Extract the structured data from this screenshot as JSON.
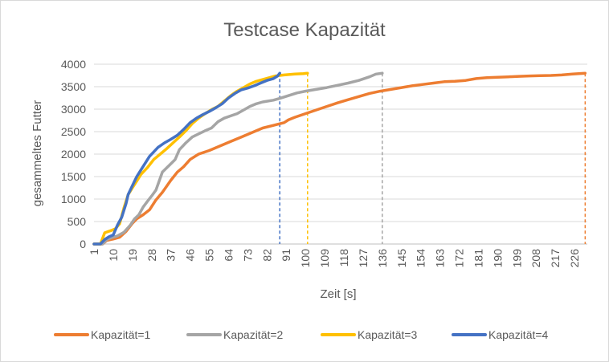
{
  "chart_data": {
    "type": "line",
    "title": "Testcase Kapazität",
    "xlabel": "Zeit [s]",
    "ylabel": "gesammeltes Futter",
    "ylim": [
      0,
      4000
    ],
    "xlim": [
      1,
      232
    ],
    "yticks": [
      "0",
      "500",
      "1000",
      "1500",
      "2000",
      "2500",
      "3000",
      "3500",
      "4000"
    ],
    "xticks": [
      "1",
      "10",
      "19",
      "28",
      "37",
      "46",
      "55",
      "64",
      "73",
      "82",
      "91",
      "100",
      "109",
      "118",
      "127",
      "136",
      "145",
      "154",
      "163",
      "172",
      "181",
      "190",
      "199",
      "208",
      "217",
      "226"
    ],
    "grid": true,
    "legend": "bottom",
    "series": [
      {
        "name": "Kapazität=1",
        "color": "#ED7D31",
        "end_x": 231,
        "points": [
          [
            1,
            0
          ],
          [
            5,
            0
          ],
          [
            7,
            80
          ],
          [
            10,
            110
          ],
          [
            13,
            150
          ],
          [
            16,
            280
          ],
          [
            19,
            460
          ],
          [
            21,
            560
          ],
          [
            24,
            650
          ],
          [
            27,
            760
          ],
          [
            30,
            980
          ],
          [
            33,
            1150
          ],
          [
            37,
            1420
          ],
          [
            40,
            1600
          ],
          [
            43,
            1720
          ],
          [
            46,
            1880
          ],
          [
            50,
            2000
          ],
          [
            55,
            2080
          ],
          [
            60,
            2180
          ],
          [
            65,
            2280
          ],
          [
            70,
            2380
          ],
          [
            75,
            2480
          ],
          [
            80,
            2580
          ],
          [
            85,
            2640
          ],
          [
            90,
            2700
          ],
          [
            92,
            2760
          ],
          [
            95,
            2820
          ],
          [
            100,
            2900
          ],
          [
            105,
            2980
          ],
          [
            110,
            3060
          ],
          [
            115,
            3140
          ],
          [
            120,
            3210
          ],
          [
            125,
            3280
          ],
          [
            130,
            3350
          ],
          [
            135,
            3400
          ],
          [
            140,
            3440
          ],
          [
            145,
            3480
          ],
          [
            150,
            3520
          ],
          [
            155,
            3550
          ],
          [
            160,
            3580
          ],
          [
            165,
            3610
          ],
          [
            170,
            3620
          ],
          [
            175,
            3640
          ],
          [
            180,
            3680
          ],
          [
            185,
            3700
          ],
          [
            190,
            3710
          ],
          [
            195,
            3720
          ],
          [
            200,
            3730
          ],
          [
            205,
            3740
          ],
          [
            210,
            3745
          ],
          [
            215,
            3750
          ],
          [
            220,
            3760
          ],
          [
            225,
            3780
          ],
          [
            231,
            3800
          ]
        ]
      },
      {
        "name": "Kapazität=2",
        "color": "#A5A5A5",
        "end_x": 136,
        "points": [
          [
            1,
            0
          ],
          [
            5,
            0
          ],
          [
            7,
            100
          ],
          [
            9,
            140
          ],
          [
            12,
            180
          ],
          [
            15,
            260
          ],
          [
            18,
            420
          ],
          [
            20,
            560
          ],
          [
            22,
            650
          ],
          [
            24,
            820
          ],
          [
            26,
            950
          ],
          [
            28,
            1070
          ],
          [
            30,
            1200
          ],
          [
            33,
            1600
          ],
          [
            36,
            1740
          ],
          [
            39,
            1880
          ],
          [
            41,
            2100
          ],
          [
            44,
            2250
          ],
          [
            47,
            2380
          ],
          [
            50,
            2450
          ],
          [
            53,
            2520
          ],
          [
            56,
            2580
          ],
          [
            59,
            2720
          ],
          [
            62,
            2800
          ],
          [
            65,
            2850
          ],
          [
            68,
            2900
          ],
          [
            71,
            2980
          ],
          [
            74,
            3060
          ],
          [
            77,
            3120
          ],
          [
            80,
            3160
          ],
          [
            85,
            3200
          ],
          [
            88,
            3240
          ],
          [
            92,
            3300
          ],
          [
            96,
            3360
          ],
          [
            100,
            3400
          ],
          [
            105,
            3440
          ],
          [
            110,
            3480
          ],
          [
            115,
            3530
          ],
          [
            120,
            3580
          ],
          [
            125,
            3640
          ],
          [
            130,
            3720
          ],
          [
            133,
            3780
          ],
          [
            136,
            3800
          ]
        ]
      },
      {
        "name": "Kapazität=3",
        "color": "#FFC000",
        "end_x": 101,
        "points": [
          [
            1,
            0
          ],
          [
            4,
            0
          ],
          [
            6,
            250
          ],
          [
            9,
            300
          ],
          [
            11,
            340
          ],
          [
            13,
            450
          ],
          [
            15,
            800
          ],
          [
            17,
            1100
          ],
          [
            19,
            1250
          ],
          [
            21,
            1400
          ],
          [
            23,
            1550
          ],
          [
            26,
            1700
          ],
          [
            29,
            1880
          ],
          [
            32,
            2000
          ],
          [
            35,
            2120
          ],
          [
            38,
            2250
          ],
          [
            41,
            2380
          ],
          [
            44,
            2520
          ],
          [
            47,
            2680
          ],
          [
            50,
            2800
          ],
          [
            53,
            2900
          ],
          [
            56,
            2990
          ],
          [
            59,
            3060
          ],
          [
            62,
            3180
          ],
          [
            65,
            3300
          ],
          [
            68,
            3400
          ],
          [
            71,
            3480
          ],
          [
            74,
            3560
          ],
          [
            77,
            3620
          ],
          [
            80,
            3660
          ],
          [
            83,
            3700
          ],
          [
            86,
            3740
          ],
          [
            90,
            3760
          ],
          [
            95,
            3780
          ],
          [
            99,
            3790
          ],
          [
            101,
            3800
          ]
        ]
      },
      {
        "name": "Kapazität=4",
        "color": "#4472C4",
        "end_x": 88,
        "points": [
          [
            1,
            0
          ],
          [
            4,
            0
          ],
          [
            6,
            100
          ],
          [
            8,
            160
          ],
          [
            10,
            200
          ],
          [
            12,
            420
          ],
          [
            14,
            600
          ],
          [
            16,
            900
          ],
          [
            17,
            1100
          ],
          [
            19,
            1300
          ],
          [
            21,
            1500
          ],
          [
            23,
            1650
          ],
          [
            25,
            1800
          ],
          [
            27,
            1950
          ],
          [
            29,
            2050
          ],
          [
            31,
            2150
          ],
          [
            34,
            2250
          ],
          [
            37,
            2330
          ],
          [
            40,
            2420
          ],
          [
            43,
            2550
          ],
          [
            46,
            2700
          ],
          [
            49,
            2800
          ],
          [
            52,
            2880
          ],
          [
            55,
            2950
          ],
          [
            58,
            3030
          ],
          [
            61,
            3120
          ],
          [
            64,
            3250
          ],
          [
            67,
            3350
          ],
          [
            70,
            3430
          ],
          [
            73,
            3470
          ],
          [
            76,
            3520
          ],
          [
            79,
            3580
          ],
          [
            82,
            3640
          ],
          [
            85,
            3680
          ],
          [
            87,
            3740
          ],
          [
            88,
            3800
          ]
        ]
      }
    ]
  }
}
